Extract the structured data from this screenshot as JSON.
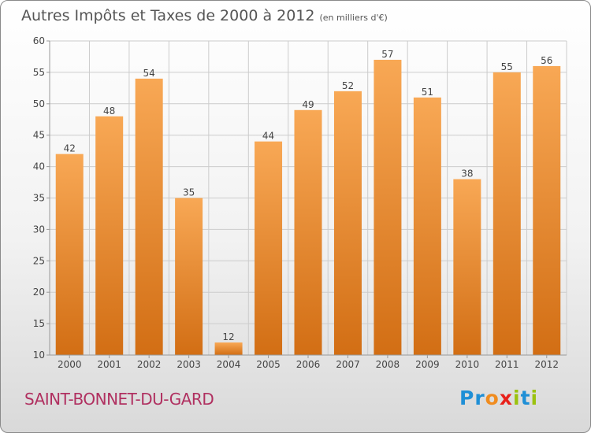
{
  "title": "Autres Impôts et Taxes de 2000 à 2012",
  "unit_note": "(en milliers d'€)",
  "commune": "SAINT-BONNET-DU-GARD",
  "logo": {
    "text": "Proxiti",
    "letter_colors": [
      "#1f8fd6",
      "#1f8fd6",
      "#f08c1f",
      "#e8211b",
      "#9bc20f",
      "#1f8fd6",
      "#9bc20f"
    ]
  },
  "colors": {
    "bar_light": "#f8a855",
    "bar_dark": "#d26e14",
    "grid": "#cccccc",
    "label": "#444444"
  },
  "chart_data": {
    "type": "bar",
    "categories": [
      "2000",
      "2001",
      "2002",
      "2003",
      "2004",
      "2005",
      "2006",
      "2007",
      "2008",
      "2009",
      "2010",
      "2011",
      "2012"
    ],
    "values": [
      42,
      48,
      54,
      35,
      12,
      44,
      49,
      52,
      57,
      51,
      38,
      55,
      56
    ],
    "ylim": [
      10,
      60
    ],
    "yticks": [
      10,
      15,
      20,
      25,
      30,
      35,
      40,
      45,
      50,
      55,
      60
    ],
    "grid": true,
    "data_labels": true
  }
}
